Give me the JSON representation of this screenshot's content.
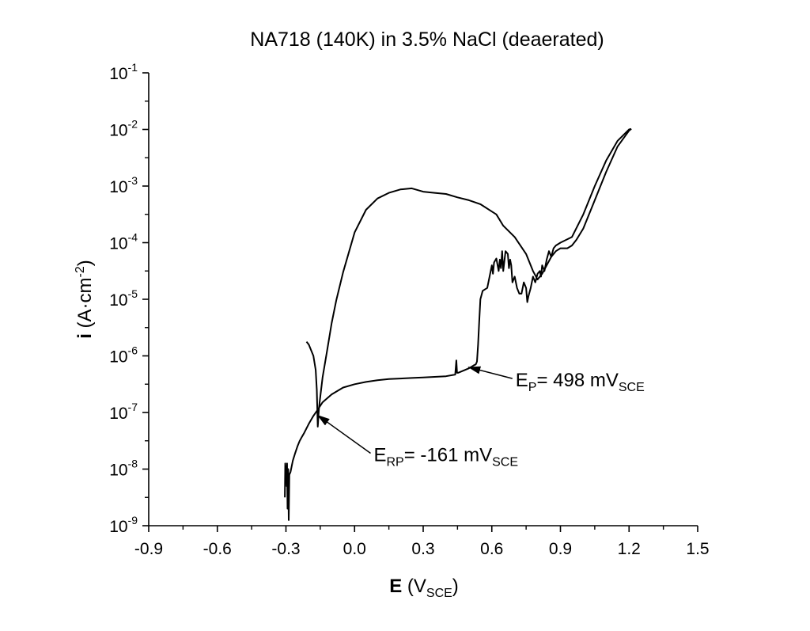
{
  "chart_data": {
    "type": "line",
    "title": "NA718 (140K) in 3.5% NaCl (deaerated)",
    "xlabel": {
      "main": "E",
      "open": " (V",
      "sub": "SCE",
      "close": ")"
    },
    "ylabel": {
      "main": "i",
      "open": " (A·cm",
      "sup": "-2",
      "close": ")"
    },
    "xlim": [
      -0.9,
      1.5
    ],
    "ylim_exponent": [
      -9,
      -1
    ],
    "y_scale": "log",
    "grid": false,
    "x_ticks": [
      "-0.9",
      "-0.6",
      "-0.3",
      "0.0",
      "0.3",
      "0.6",
      "0.9",
      "1.2",
      "1.5"
    ],
    "x_tick_values": [
      -0.9,
      -0.6,
      -0.3,
      0.0,
      0.3,
      0.6,
      0.9,
      1.2,
      1.5
    ],
    "y_ticks": [
      {
        "base": "10",
        "exp": "-9",
        "value": -9
      },
      {
        "base": "10",
        "exp": "-8",
        "value": -8
      },
      {
        "base": "10",
        "exp": "-7",
        "value": -7
      },
      {
        "base": "10",
        "exp": "-6",
        "value": -6
      },
      {
        "base": "10",
        "exp": "-5",
        "value": -5
      },
      {
        "base": "10",
        "exp": "-4",
        "value": -4
      },
      {
        "base": "10",
        "exp": "-3",
        "value": -3
      },
      {
        "base": "10",
        "exp": "-2",
        "value": -2
      },
      {
        "base": "10",
        "exp": "-1",
        "value": -1
      }
    ],
    "series": [
      {
        "x": [
          -0.305,
          -0.303,
          -0.301,
          -0.299,
          -0.297,
          -0.295,
          -0.293,
          -0.29,
          -0.288,
          -0.285,
          -0.28,
          -0.27,
          -0.26,
          -0.25,
          -0.24,
          -0.23,
          -0.22,
          -0.2,
          -0.18,
          -0.161,
          -0.14,
          -0.1,
          -0.05,
          0.0,
          0.05,
          0.1,
          0.15,
          0.2,
          0.25,
          0.3,
          0.35,
          0.4,
          0.44,
          0.445,
          0.448,
          0.452,
          0.47,
          0.5,
          0.52,
          0.53,
          0.535,
          0.54,
          0.545,
          0.55,
          0.56,
          0.58,
          0.59,
          0.6,
          0.605,
          0.61,
          0.62,
          0.63,
          0.635,
          0.64,
          0.645,
          0.65,
          0.66,
          0.67,
          0.675,
          0.68,
          0.685,
          0.69,
          0.7,
          0.71,
          0.72,
          0.73,
          0.74,
          0.75,
          0.755,
          0.76,
          0.77,
          0.78,
          0.79,
          0.8,
          0.81,
          0.815,
          0.82,
          0.83,
          0.84,
          0.85,
          0.86,
          0.87,
          0.88,
          0.9,
          0.95,
          1.0,
          1.05,
          1.1,
          1.15,
          1.2,
          1.21
        ],
        "y": [
          -8.5,
          -7.9,
          -8.2,
          -7.95,
          -8.3,
          -7.9,
          -8.7,
          -8.0,
          -8.9,
          -8.1,
          -8.05,
          -7.85,
          -7.72,
          -7.6,
          -7.5,
          -7.43,
          -7.36,
          -7.2,
          -7.06,
          -6.95,
          -6.82,
          -6.68,
          -6.56,
          -6.5,
          -6.46,
          -6.43,
          -6.41,
          -6.4,
          -6.39,
          -6.38,
          -6.37,
          -6.36,
          -6.33,
          -6.08,
          -6.3,
          -6.3,
          -6.27,
          -6.22,
          -6.17,
          -6.15,
          -6.1,
          -5.8,
          -5.4,
          -5.0,
          -4.85,
          -4.8,
          -4.6,
          -4.4,
          -4.55,
          -4.35,
          -4.28,
          -4.5,
          -4.3,
          -4.45,
          -4.15,
          -4.5,
          -4.15,
          -4.2,
          -4.45,
          -4.3,
          -4.4,
          -4.7,
          -4.6,
          -4.8,
          -4.9,
          -4.9,
          -4.7,
          -4.8,
          -5.05,
          -4.95,
          -4.8,
          -4.6,
          -4.7,
          -4.55,
          -4.5,
          -4.6,
          -4.4,
          -4.5,
          -4.3,
          -4.15,
          -4.25,
          -4.1,
          -4.05,
          -4.0,
          -3.9,
          -3.5,
          -3.0,
          -2.55,
          -2.2,
          -2.0,
          -1.99
        ]
      },
      {
        "x": [
          1.21,
          1.2,
          1.15,
          1.1,
          1.05,
          1.0,
          0.97,
          0.95,
          0.93,
          0.9,
          0.88,
          0.86,
          0.84,
          0.82,
          0.8,
          0.78,
          0.75,
          0.7,
          0.65,
          0.62,
          0.6,
          0.55,
          0.5,
          0.45,
          0.4,
          0.35,
          0.3,
          0.25,
          0.2,
          0.15,
          0.1,
          0.05,
          0.0,
          -0.05,
          -0.08,
          -0.1,
          -0.12,
          -0.14,
          -0.15,
          -0.155,
          -0.158,
          -0.16,
          -0.161,
          -0.165,
          -0.17,
          -0.18,
          -0.19,
          -0.2,
          -0.21
        ],
        "y": [
          -1.99,
          -2.02,
          -2.3,
          -2.75,
          -3.25,
          -3.75,
          -3.95,
          -4.05,
          -4.1,
          -4.1,
          -4.15,
          -4.25,
          -4.4,
          -4.55,
          -4.65,
          -4.5,
          -4.2,
          -3.9,
          -3.7,
          -3.5,
          -3.45,
          -3.32,
          -3.25,
          -3.2,
          -3.14,
          -3.12,
          -3.1,
          -3.04,
          -3.06,
          -3.12,
          -3.22,
          -3.42,
          -3.82,
          -4.52,
          -5.02,
          -5.42,
          -5.9,
          -6.38,
          -6.72,
          -6.9,
          -7.05,
          -7.2,
          -7.25,
          -6.6,
          -6.25,
          -6.0,
          -5.9,
          -5.8,
          -5.75
        ]
      }
    ],
    "annotations": [
      {
        "main": "E",
        "sub": "P",
        "text": "= 498 mV",
        "unit_sub": "SCE",
        "point": [
          0.498,
          -6.2
        ],
        "anchor": [
          0.69,
          -6.4
        ]
      },
      {
        "main": "E",
        "sub": "RP",
        "text": "= -161 mV",
        "unit_sub": "SCE",
        "point": [
          -0.161,
          -7.05
        ],
        "anchor": [
          0.07,
          -7.72
        ]
      }
    ]
  }
}
